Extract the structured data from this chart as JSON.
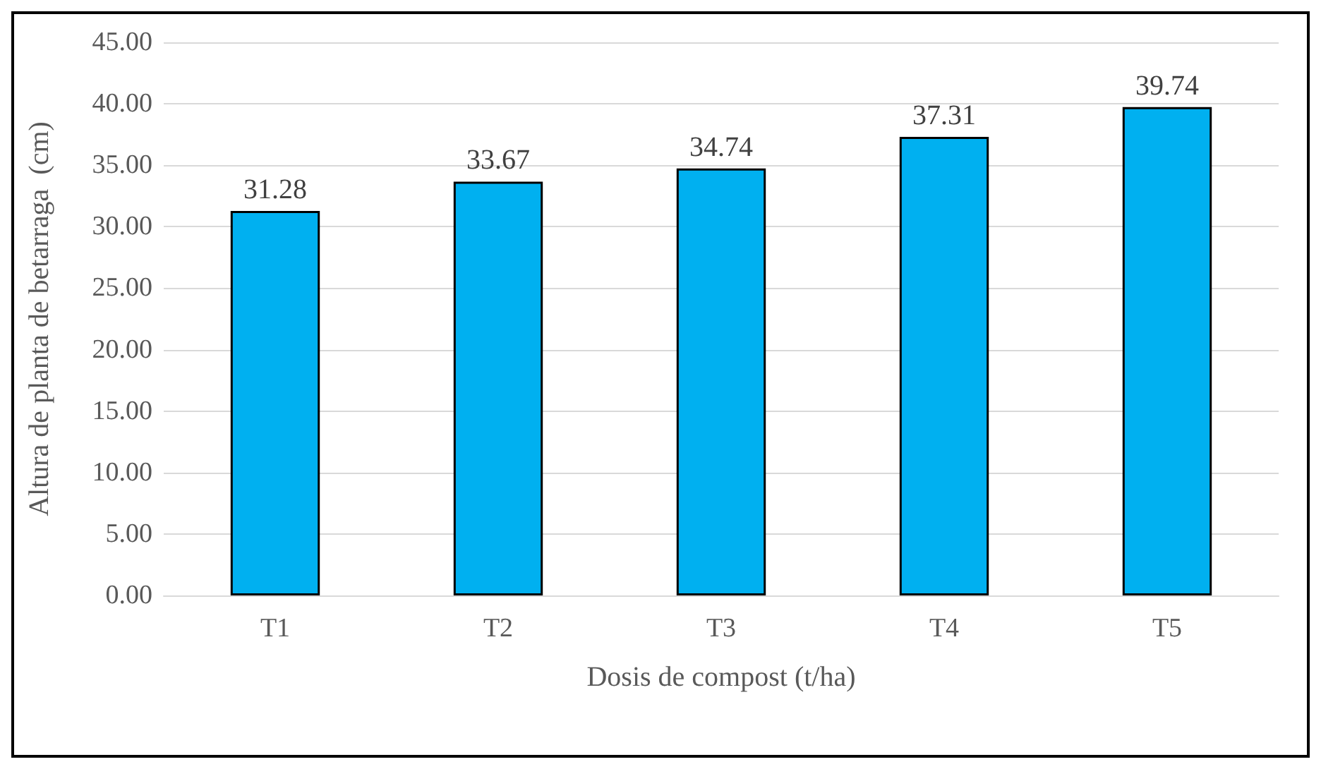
{
  "chart_data": {
    "type": "bar",
    "xlabel": "Dosis de compost (t/ha)",
    "ylabel": "Altura de planta de betarraga  (cm)",
    "categories": [
      "T1",
      "T2",
      "T3",
      "T4",
      "T5"
    ],
    "values": [
      31.28,
      33.67,
      34.74,
      37.31,
      39.74
    ],
    "color": "#00b0f0",
    "ylim": [
      0,
      45
    ],
    "yticks": [
      {
        "value": 0,
        "label": "0.00"
      },
      {
        "value": 5,
        "label": "5.00"
      },
      {
        "value": 10,
        "label": "10.00"
      },
      {
        "value": 15,
        "label": "15.00"
      },
      {
        "value": 20,
        "label": "20.00"
      },
      {
        "value": 25,
        "label": "25.00"
      },
      {
        "value": 30,
        "label": "30.00"
      },
      {
        "value": 35,
        "label": "35.00"
      },
      {
        "value": 40,
        "label": "40.00"
      },
      {
        "value": 45,
        "label": "45.00"
      }
    ],
    "grid": "y",
    "data_labels": true
  }
}
